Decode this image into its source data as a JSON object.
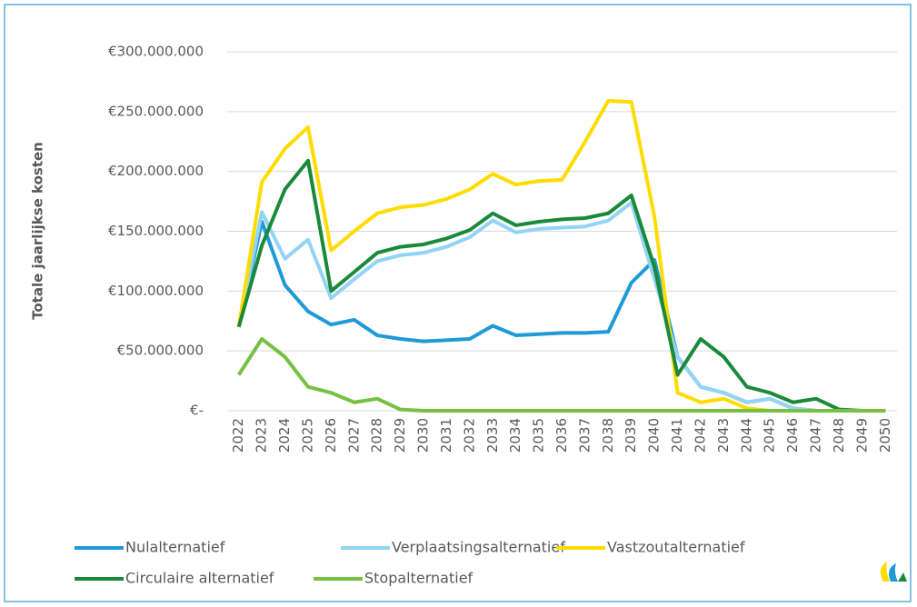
{
  "chart_data": {
    "type": "line",
    "y_label": "Totale jaarlijkse kosten",
    "categories": [
      "2022",
      "2023",
      "2024",
      "2025",
      "2026",
      "2027",
      "2028",
      "2029",
      "2030",
      "2031",
      "2032",
      "2033",
      "2034",
      "2035",
      "2036",
      "2037",
      "2038",
      "2039",
      "2040",
      "2041",
      "2042",
      "2043",
      "2044",
      "2045",
      "2046",
      "2047",
      "2048",
      "2049",
      "2050"
    ],
    "series": [
      {
        "name": "Nulalternatief",
        "color": "#1f9ad6",
        "values": [
          70000000,
          158000000,
          105000000,
          83000000,
          72000000,
          76000000,
          63000000,
          60000000,
          58000000,
          59000000,
          60000000,
          71000000,
          63000000,
          64000000,
          65000000,
          65000000,
          66000000,
          107000000,
          126000000,
          45000000,
          20000000,
          15000000,
          7000000,
          10000000,
          2000000,
          0,
          0,
          0,
          0
        ]
      },
      {
        "name": "Verplaatsingsalternatief",
        "color": "#93d4f4",
        "values": [
          70000000,
          166000000,
          127000000,
          143000000,
          94000000,
          110000000,
          125000000,
          130000000,
          132000000,
          137000000,
          145000000,
          159000000,
          149000000,
          152000000,
          153000000,
          154000000,
          159000000,
          174000000,
          110000000,
          45000000,
          20000000,
          15000000,
          7000000,
          10000000,
          2000000,
          0,
          0,
          0,
          0
        ]
      },
      {
        "name": "Vastzoutalternatief",
        "color": "#ffdc00",
        "values": [
          70000000,
          191000000,
          219000000,
          237000000,
          134000000,
          150000000,
          165000000,
          170000000,
          172000000,
          177000000,
          185000000,
          198000000,
          189000000,
          192000000,
          193000000,
          225000000,
          259000000,
          258000000,
          162000000,
          15000000,
          7000000,
          10000000,
          2000000,
          0,
          0,
          0,
          0,
          0,
          0
        ]
      },
      {
        "name": "Circulaire alternatief",
        "color": "#1a8a3a",
        "values": [
          70000000,
          138000000,
          185000000,
          209000000,
          100000000,
          116000000,
          132000000,
          137000000,
          139000000,
          144000000,
          151000000,
          165000000,
          155000000,
          158000000,
          160000000,
          161000000,
          165000000,
          180000000,
          120000000,
          30000000,
          60000000,
          45000000,
          20000000,
          15000000,
          7000000,
          10000000,
          1000000,
          0,
          0
        ]
      },
      {
        "name": "Stopalternatief",
        "color": "#76c043",
        "values": [
          30000000,
          60000000,
          45000000,
          20000000,
          15000000,
          7000000,
          10000000,
          1000000,
          0,
          0,
          0,
          0,
          0,
          0,
          0,
          0,
          0,
          0,
          0,
          0,
          0,
          0,
          0,
          0,
          0,
          0,
          0,
          0,
          0
        ]
      }
    ],
    "ylim": [
      0,
      300000000
    ],
    "yticks": [
      {
        "value": 0,
        "label": "€-"
      },
      {
        "value": 50000000,
        "label": "€50.000.000"
      },
      {
        "value": 100000000,
        "label": "€100.000.000"
      },
      {
        "value": 150000000,
        "label": "€150.000.000"
      },
      {
        "value": 200000000,
        "label": "€200.000.000"
      },
      {
        "value": 250000000,
        "label": "€250.000.000"
      },
      {
        "value": 300000000,
        "label": "€300.000.000"
      }
    ],
    "grid": true
  }
}
